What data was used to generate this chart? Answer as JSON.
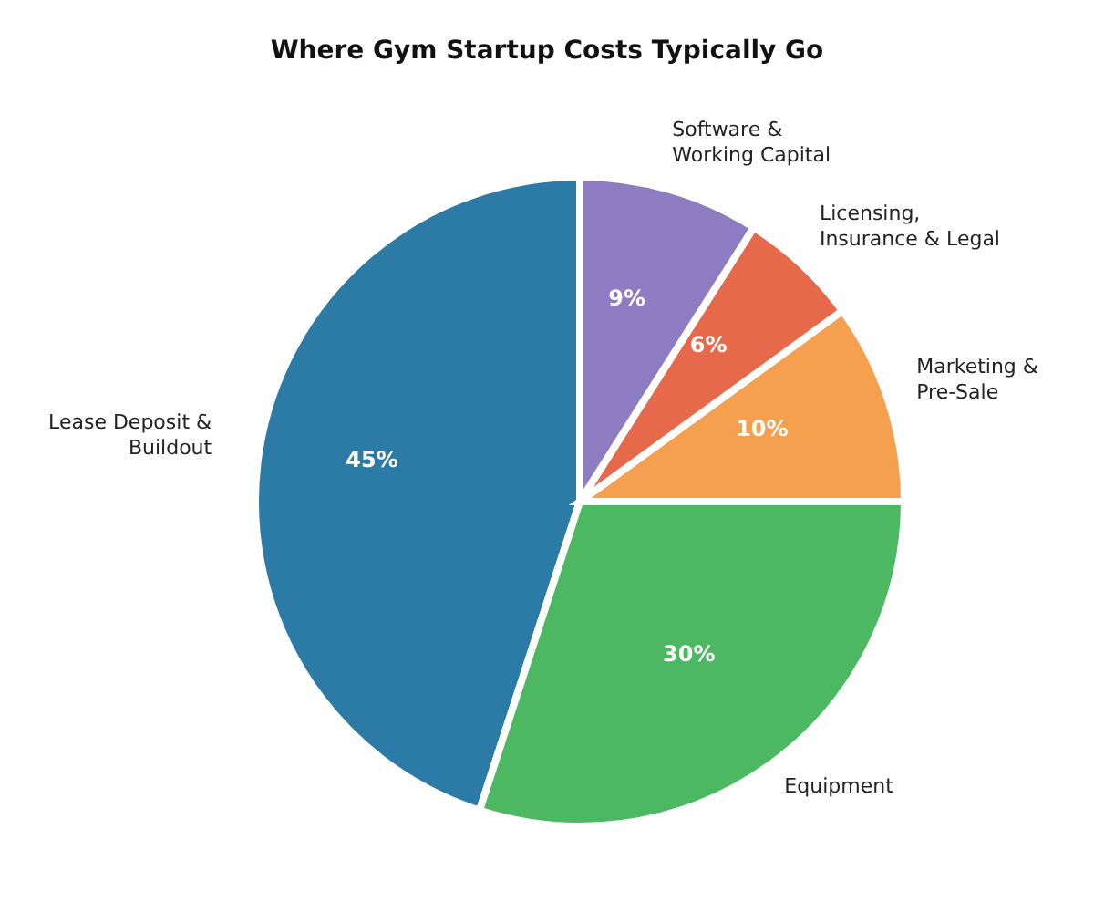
{
  "chart_data": {
    "type": "pie",
    "title": "Where Gym Startup Costs Typically Go",
    "categories": [
      "Lease Deposit & Buildout",
      "Equipment",
      "Marketing & Pre-Sale",
      "Licensing, Insurance & Legal",
      "Software & Working Capital"
    ],
    "values": [
      45,
      30,
      10,
      6,
      9
    ],
    "colors": [
      "#2b7ba6",
      "#4cb862",
      "#f5a04e",
      "#e5694a",
      "#8e7cc3"
    ],
    "value_labels": [
      "45%",
      "30%",
      "10%",
      "6%",
      "9%"
    ],
    "legend": false
  }
}
